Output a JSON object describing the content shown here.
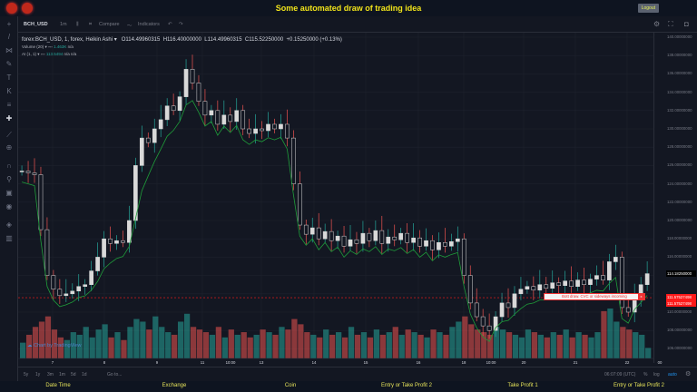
{
  "header": {
    "title": "Some automated draw of trading idea",
    "logout_label": "Logout"
  },
  "toolbar": {
    "symbol": "BCH_USD",
    "interval": "1m",
    "compare_label": "Compare",
    "indicators_label": "Indicators"
  },
  "legend": {
    "series": "forex:BCH_USD, 1, forex, Heikin Ashi",
    "open": "O114.49960315",
    "high": "H116.40000000",
    "low": "L114.49960315",
    "close": "C115.52250000",
    "change": "+0.15250000 (+0.13%)",
    "volume_label": "Volume (20)",
    "volume_value": "1.463K",
    "volume_na": "n/a",
    "ai_label": "AI (1, 1)",
    "ai_value": "113.5494",
    "ai_na": "n/a  n/a"
  },
  "price_axis": [
    "140.00000000",
    "138.00000000",
    "136.00000000",
    "134.00000000",
    "132.00000000",
    "130.00000000",
    "128.00000000",
    "126.00000000",
    "124.00000000",
    "122.00000000",
    "120.00000000",
    "118.00000000",
    "116.00000000",
    "110.00000000",
    "108.00000000",
    "106.00000000"
  ],
  "current_price": "114.18250000",
  "level_price": "111.57527498",
  "time_axis": [
    "7",
    "8",
    "9",
    "11",
    "10:00",
    "13",
    "14",
    "15",
    "16",
    "18",
    "10:00",
    "20",
    "21",
    "22",
    "00"
  ],
  "annotation": {
    "text": "Bott draw. CVC or sideways incoming",
    "close": "x"
  },
  "watermark": "Chart by TradingView",
  "bottom_toolbar": {
    "ranges": [
      "5y",
      "1y",
      "3m",
      "1m",
      "5d",
      "1d"
    ],
    "goto": "Go to...",
    "time": "06:07:09 (UTC)",
    "percent": "%",
    "log": "log",
    "auto": "auto"
  },
  "bottom_labels": [
    "Date Time",
    "Exchange",
    "Coin",
    "Entry or Take Profit 2",
    "Take Profit 1",
    "Entry or Take Profit 2"
  ],
  "colors": {
    "accent": "#f0e31a",
    "up": "#26a69a",
    "down": "#ef5350",
    "level": "#ff1a1a"
  },
  "chart_data": {
    "type": "candlestick",
    "style": "Heikin Ashi",
    "ylim": [
      105,
      140.5
    ],
    "close": [
      125.4,
      125.2,
      125,
      119,
      114,
      112.5,
      111.8,
      112,
      112.3,
      112.8,
      113,
      114.5,
      116,
      118,
      117.5,
      117.8,
      117.6,
      120,
      126,
      129,
      128.5,
      130,
      131,
      132.5,
      132,
      133.5,
      136.5,
      135,
      133,
      131.5,
      132,
      130.5,
      131.5,
      130.8,
      132,
      130,
      129.5,
      130,
      129.8,
      130.5,
      130,
      130.5,
      129,
      124,
      119.5,
      118.5,
      119.2,
      118,
      118.8,
      117.8,
      118.3,
      117.2,
      117.9,
      117.5,
      118.6,
      117.8,
      118.9,
      117.5,
      118.2,
      117.9,
      118.6,
      117.6,
      118.1,
      117.2,
      117.8,
      116.8,
      117.6,
      117.2,
      117.7,
      118,
      114,
      111,
      109.5,
      108.5,
      108,
      109.5,
      111,
      110.5,
      112,
      112.5,
      112.8,
      112.4,
      113,
      112.6,
      113.2,
      112.9,
      113.4,
      112.8,
      113.5,
      113,
      113.6,
      114,
      113.5,
      115.5,
      116,
      110.5,
      110,
      111.5,
      113,
      114.2
    ],
    "volume": [
      30,
      45,
      60,
      70,
      80,
      55,
      40,
      35,
      50,
      45,
      60,
      40,
      55,
      65,
      40,
      50,
      35,
      60,
      75,
      70,
      55,
      80,
      60,
      50,
      45,
      70,
      85,
      60,
      55,
      50,
      45,
      60,
      40,
      55,
      45,
      50,
      40,
      45,
      55,
      50,
      45,
      60,
      55,
      75,
      65,
      50,
      45,
      40,
      55,
      45,
      50,
      40,
      60,
      45,
      50,
      40,
      55,
      45,
      50,
      60,
      45,
      55,
      50,
      45,
      40,
      55,
      50,
      45,
      60,
      70,
      80,
      65,
      55,
      50,
      45,
      60,
      55,
      50,
      45,
      40,
      55,
      50,
      45,
      40,
      50,
      45,
      55,
      40,
      50,
      45,
      40,
      50,
      90,
      95,
      70,
      60,
      55,
      50,
      45,
      20
    ]
  }
}
